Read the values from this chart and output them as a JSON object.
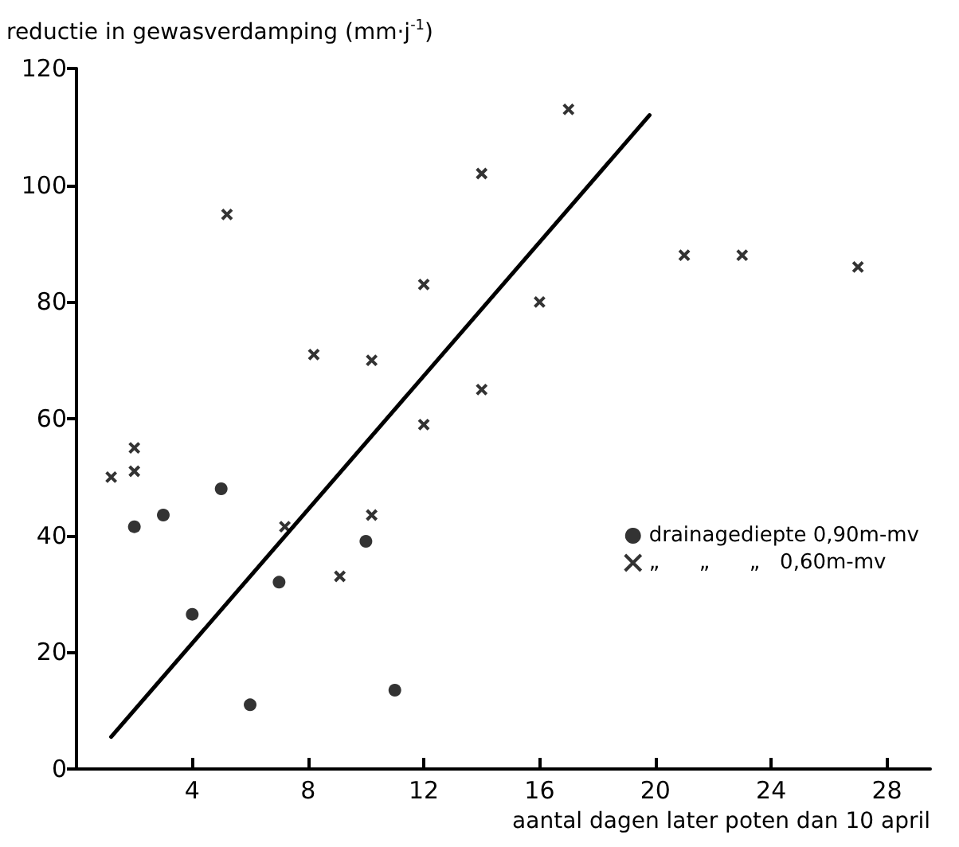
{
  "chart_data": {
    "type": "scatter",
    "ylabel": "reductie in gewasverdamping (mm·j$^{-1}$)",
    "xlabel": "aantal dagen later poten dan 10 april",
    "xlim": [
      0,
      29.5
    ],
    "xticks": [
      4,
      8,
      12,
      16,
      20,
      24,
      28
    ],
    "ylim": [
      0,
      120
    ],
    "yticks": [
      0,
      20,
      40,
      60,
      80,
      100,
      120
    ],
    "grid": false,
    "legend": "right",
    "series": [
      {
        "name": "drainagediepte 0,90m-mv",
        "color": "#000000",
        "marker": "circle",
        "x": [
          2,
          3,
          4,
          5,
          6,
          7,
          10,
          11
        ],
        "values": [
          41.5,
          43.5,
          26.5,
          48,
          11,
          32,
          39,
          13.5
        ]
      },
      {
        "name": "„      „      „   0,60m-mv",
        "color": "#000000",
        "marker": "cross",
        "x": [
          1.2,
          2,
          2,
          5.2,
          7.2,
          8.2,
          9.1,
          10.2,
          10.2,
          12,
          12,
          14,
          14,
          16,
          17,
          21,
          23,
          27
        ],
        "values": [
          50,
          51,
          55,
          95,
          41.5,
          71,
          33,
          70,
          43.5,
          83,
          59,
          102,
          65,
          80,
          113,
          88,
          88,
          86
        ]
      },
      {
        "type": "line",
        "color": "#000000",
        "marker": "none",
        "line_style": "solid",
        "x": [
          1.2,
          19.8
        ],
        "values": [
          5.5,
          112
        ]
      }
    ]
  }
}
